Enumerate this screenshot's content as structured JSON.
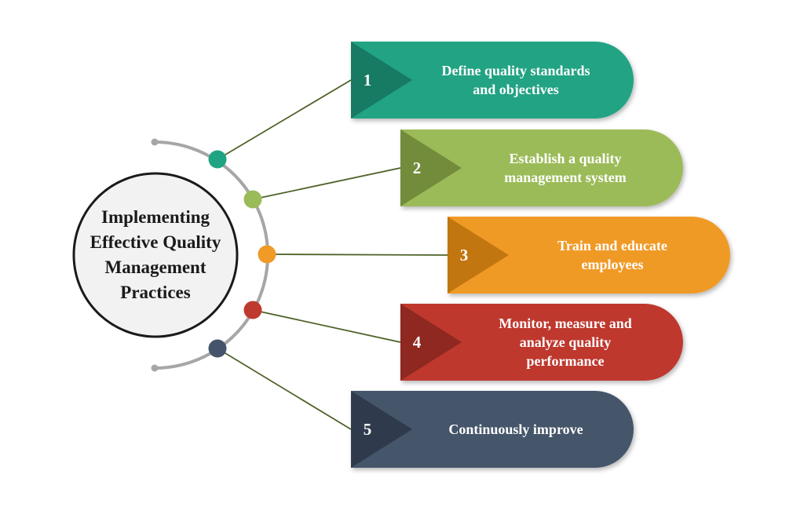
{
  "diagram": {
    "center_title": "Implementing\nEffective Quality\nManagement\nPractices",
    "steps": [
      {
        "number": "1",
        "label": "Define quality standards\nand objectives",
        "color": "#20A383",
        "dark": "#177A62"
      },
      {
        "number": "2",
        "label": "Establish a quality\nmanagement system",
        "color": "#9BBB59",
        "dark": "#728C3C"
      },
      {
        "number": "3",
        "label": "Train and educate\nemployees",
        "color": "#F09A28",
        "dark": "#C2760F"
      },
      {
        "number": "4",
        "label": "Monitor, measure and\nanalyze quality\nperformance",
        "color": "#BE392E",
        "dark": "#8E2820"
      },
      {
        "number": "5",
        "label": "Continuously improve",
        "color": "#45546B",
        "dark": "#2F3A4C"
      }
    ],
    "connector_color": "#4F6228",
    "arc_color": "#A6A6A6"
  }
}
